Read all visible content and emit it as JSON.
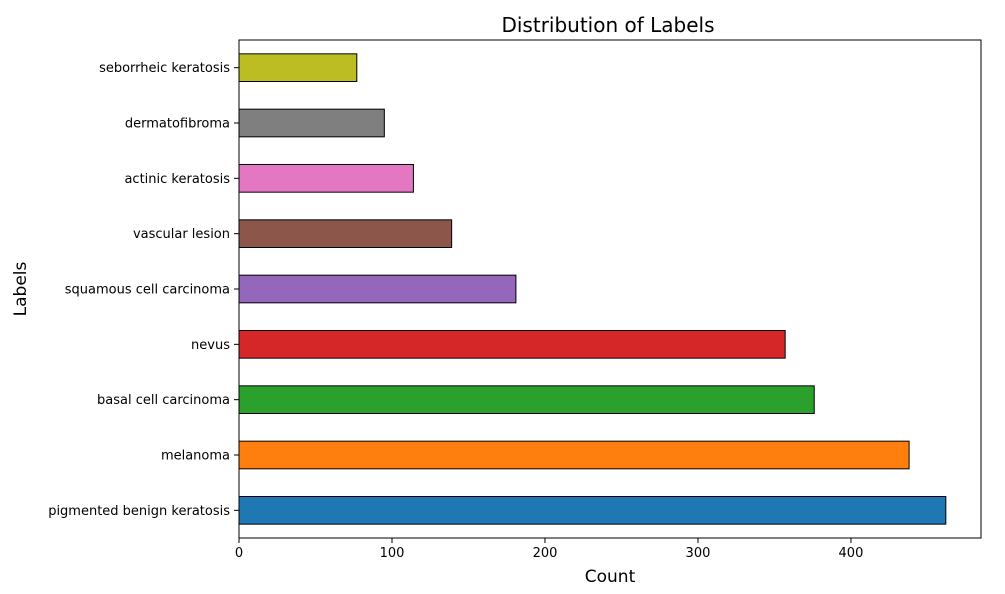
{
  "chart_data": {
    "type": "bar",
    "orientation": "horizontal",
    "title": "Distribution of Labels",
    "xlabel": "Count",
    "ylabel": "Labels",
    "categories": [
      "pigmented benign keratosis",
      "melanoma",
      "basal cell carcinoma",
      "nevus",
      "squamous cell carcinoma",
      "vascular lesion",
      "actinic keratosis",
      "dermatofibroma",
      "seborrheic keratosis"
    ],
    "values": [
      462,
      438,
      376,
      357,
      181,
      139,
      114,
      95,
      77
    ],
    "colors": [
      "#1f77b4",
      "#ff7f0e",
      "#2ca02c",
      "#d62728",
      "#9467bd",
      "#8c564b",
      "#e377c2",
      "#7f7f7f",
      "#bcbd22"
    ],
    "xlim": [
      0,
      485
    ],
    "xticks": [
      0,
      100,
      200,
      300,
      400
    ],
    "grid": false,
    "legend": false
  }
}
